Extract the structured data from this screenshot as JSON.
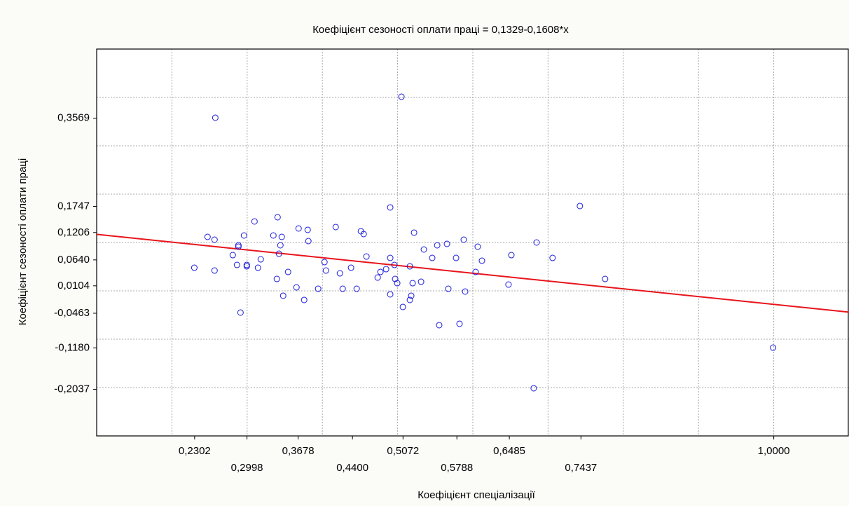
{
  "chart_data": {
    "type": "scatter",
    "title": "Коефіцієнт сезоності оплати праці = 0,1329-0,1608*x",
    "x_label": "Коефіцієнт спеціалізації",
    "y_label": "Коефіцієнт сезоності оплати праці",
    "regression": {
      "intercept": 0.1329,
      "slope": -0.1608,
      "color": "#e8141c"
    },
    "series": [
      {
        "color": "#1a1adc",
        "x": [
          0.2298,
          0.2474,
          0.2567,
          0.2567,
          0.2577,
          0.2809,
          0.2865,
          0.2884,
          0.2884,
          0.2912,
          0.2958,
          0.2995,
          0.2995,
          0.3098,
          0.3144,
          0.3181,
          0.3349,
          0.3395,
          0.3405,
          0.3423,
          0.3442,
          0.346,
          0.3479,
          0.3544,
          0.3656,
          0.3684,
          0.3758,
          0.3805,
          0.3814,
          0.3944,
          0.4028,
          0.4047,
          0.4177,
          0.4233,
          0.427,
          0.4381,
          0.4456,
          0.4512,
          0.4549,
          0.4586,
          0.4735,
          0.4772,
          0.4847,
          0.4902,
          0.4902,
          0.4902,
          0.4958,
          0.4967,
          0.4995,
          0.5051,
          0.507,
          0.5163,
          0.5163,
          0.5181,
          0.52,
          0.5219,
          0.5312,
          0.5349,
          0.546,
          0.5526,
          0.5553,
          0.5656,
          0.5674,
          0.5777,
          0.5823,
          0.5879,
          0.5898,
          0.6037,
          0.6065,
          0.6121,
          0.6474,
          0.6512,
          0.6809,
          0.6847,
          0.706,
          0.7423,
          0.7758,
          0.9991
        ],
        "values": [
          0.0478,
          0.1116,
          0.1058,
          0.042,
          0.358,
          0.0739,
          0.0536,
          0.0942,
          0.0913,
          -0.0449,
          0.1145,
          0.0536,
          0.0507,
          0.1435,
          0.0478,
          0.0652,
          0.1145,
          0.0246,
          0.1522,
          0.0768,
          0.0942,
          0.1116,
          -0.0101,
          0.0391,
          0.0072,
          0.129,
          -0.0188,
          0.1261,
          0.1029,
          0.0043,
          0.0594,
          0.042,
          0.1319,
          0.0362,
          0.0043,
          0.0478,
          0.0043,
          0.1232,
          0.1174,
          0.071,
          0.0275,
          0.0391,
          0.0449,
          0.1725,
          0.0681,
          -0.0072,
          0.0536,
          0.0246,
          0.0159,
          0.4014,
          -0.0333,
          0.0507,
          -0.0188,
          -0.0101,
          0.0159,
          0.1203,
          0.0188,
          0.0855,
          0.0681,
          0.0942,
          -0.071,
          0.0971,
          0.0043,
          0.0681,
          -0.0681,
          0.1058,
          -0.0014,
          0.0391,
          0.0913,
          0.0623,
          0.013,
          0.0739,
          -0.2014,
          0.1,
          0.0681,
          0.1754,
          0.0246,
          -0.1174
        ]
      }
    ],
    "xlim": [
      0.1,
      1.1
    ],
    "ylim": [
      -0.3,
      0.5
    ],
    "xticks": [
      {
        "value": 0.2302,
        "label": "0,2302"
      },
      {
        "value": 0.2998,
        "label": "0,2998"
      },
      {
        "value": 0.3678,
        "label": "0,3678"
      },
      {
        "value": 0.44,
        "label": "0,4400"
      },
      {
        "value": 0.5072,
        "label": "0,5072"
      },
      {
        "value": 0.5788,
        "label": "0,5788"
      },
      {
        "value": 0.6485,
        "label": "0,6485"
      },
      {
        "value": 0.7437,
        "label": "0,7437"
      },
      {
        "value": 1,
        "label": "1,0000"
      }
    ],
    "yticks": [
      {
        "value": 0.3569,
        "label": "0,3569"
      },
      {
        "value": 0.1747,
        "label": "0,1747"
      },
      {
        "value": 0.1206,
        "label": "0,1206"
      },
      {
        "value": 0.064,
        "label": "0,0640"
      },
      {
        "value": 0.0104,
        "label": "0,0104"
      },
      {
        "value": -0.0463,
        "label": "-0,0463"
      },
      {
        "value": -0.118,
        "label": "-0,1180"
      },
      {
        "value": -0.2037,
        "label": "-0,2037"
      }
    ],
    "xgrid": [
      0.2,
      0.3,
      0.4,
      0.5,
      0.6,
      0.7,
      0.8,
      0.9,
      1.0
    ],
    "ygrid": [
      -0.2,
      -0.1,
      0,
      0.1,
      0.2,
      0.3,
      0.4
    ],
    "grid": true
  }
}
